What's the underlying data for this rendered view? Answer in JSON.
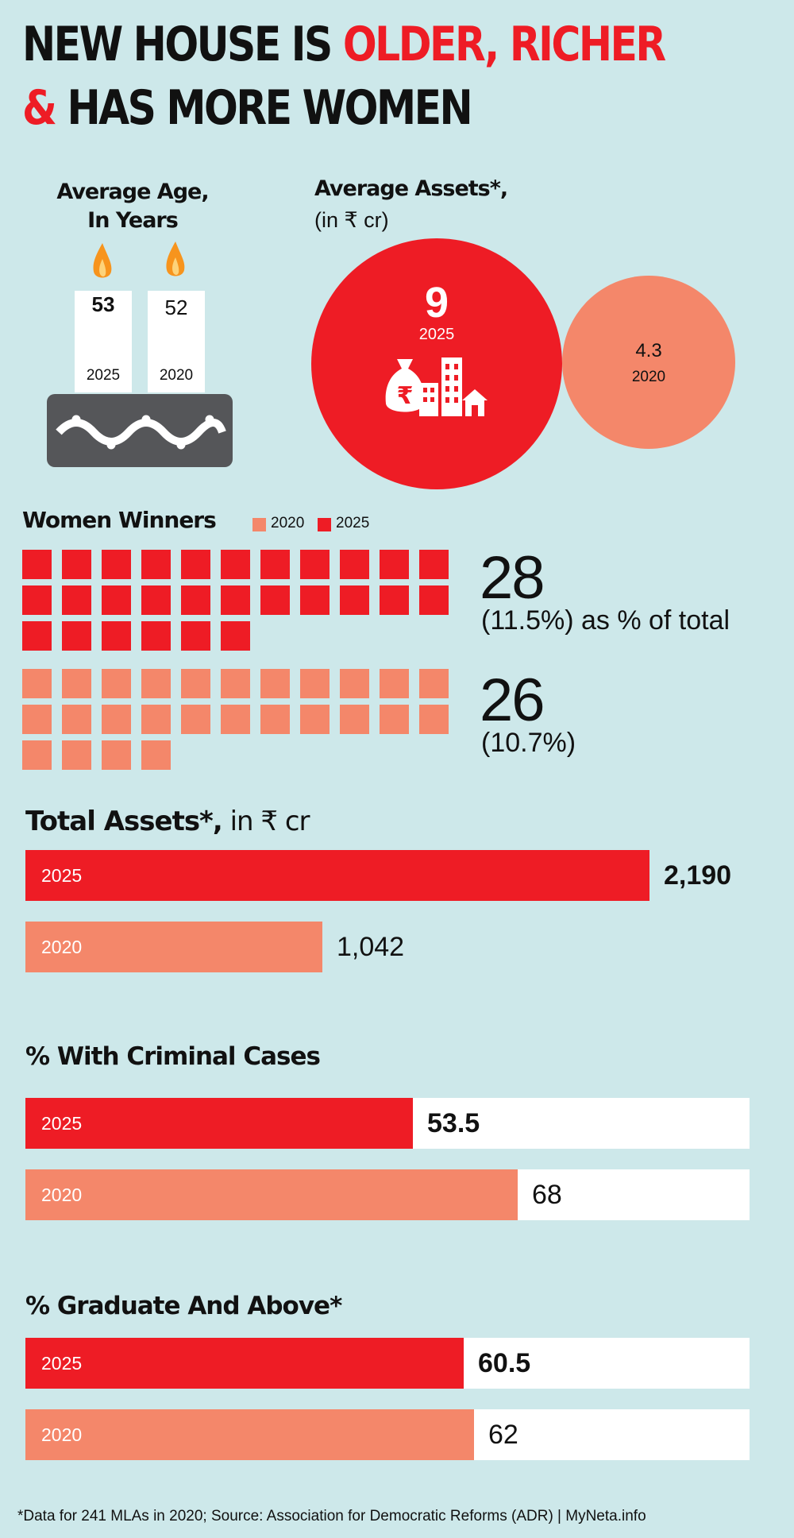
{
  "headline": {
    "part1": "NEW HOUSE IS ",
    "part1_red": "OLDER, RICHER",
    "part2_red_amp": "& ",
    "part2": "HAS MORE WOMEN"
  },
  "age": {
    "title_line1": "Average Age,",
    "title_line2": "In Years",
    "candles": [
      {
        "value": "53",
        "year": "2025"
      },
      {
        "value": "52",
        "year": "2020"
      }
    ]
  },
  "assets_avg": {
    "title": "Average Assets*,",
    "subtitle": "(in ₹ cr)",
    "circles": [
      {
        "value": "9",
        "year": "2025",
        "color": "#ee1c25",
        "icon": "money-bag-buildings-icon"
      },
      {
        "value": "4.3",
        "year": "2020",
        "color": "#f4876a"
      }
    ]
  },
  "women": {
    "title": "Women Winners",
    "legend": [
      {
        "label": "2020",
        "color": "#f4876a"
      },
      {
        "label": "2025",
        "color": "#ee1c25"
      }
    ],
    "rows": [
      {
        "year": "2025",
        "count": 28,
        "big": "28",
        "pct": "(11.5%) as % of total",
        "color": "#ee1c25"
      },
      {
        "year": "2020",
        "count": 26,
        "big": "26",
        "pct": "(10.7%)",
        "color": "#f4876a"
      }
    ]
  },
  "total_assets": {
    "title": "Total Assets*,",
    "title_sub": " in ₹ cr",
    "max": 2190,
    "bars": [
      {
        "year": "2025",
        "value": 2190,
        "label": "2,190",
        "color": "#ee1c25",
        "bold": true
      },
      {
        "year": "2020",
        "value": 1042,
        "label": "1,042",
        "color": "#f4876a",
        "bold": false
      }
    ]
  },
  "criminal": {
    "title": "% With Criminal Cases",
    "max": 100,
    "bars": [
      {
        "year": "2025",
        "value": 53.5,
        "label": "53.5",
        "color": "#ee1c25",
        "bold": true
      },
      {
        "year": "2020",
        "value": 68,
        "label": "68",
        "color": "#f4876a",
        "bold": false
      }
    ]
  },
  "graduate": {
    "title": "% Graduate And Above*",
    "max": 100,
    "bars": [
      {
        "year": "2025",
        "value": 60.5,
        "label": "60.5",
        "color": "#ee1c25",
        "bold": true
      },
      {
        "year": "2020",
        "value": 62,
        "label": "62",
        "color": "#f4876a",
        "bold": false
      }
    ]
  },
  "footnote": "*Data for 241 MLAs in 2020; Source: Association for Democratic Reforms (ADR) | MyNeta.info",
  "chart_data": [
    {
      "type": "table",
      "title": "Average Age, In Years",
      "categories": [
        "2025",
        "2020"
      ],
      "values": [
        53,
        52
      ]
    },
    {
      "type": "bar",
      "title": "Average Assets*, (in ₹ cr)",
      "categories": [
        "2025",
        "2020"
      ],
      "values": [
        9,
        4.3
      ]
    },
    {
      "type": "bar",
      "title": "Women Winners",
      "categories": [
        "2025",
        "2020"
      ],
      "values": [
        28,
        26
      ],
      "percent_of_total": [
        11.5,
        10.7
      ]
    },
    {
      "type": "bar",
      "title": "Total Assets*, in ₹ cr",
      "categories": [
        "2025",
        "2020"
      ],
      "values": [
        2190,
        1042
      ]
    },
    {
      "type": "bar",
      "title": "% With Criminal Cases",
      "categories": [
        "2025",
        "2020"
      ],
      "values": [
        53.5,
        68
      ],
      "ylim": [
        0,
        100
      ]
    },
    {
      "type": "bar",
      "title": "% Graduate And Above*",
      "categories": [
        "2025",
        "2020"
      ],
      "values": [
        60.5,
        62
      ],
      "ylim": [
        0,
        100
      ]
    }
  ]
}
